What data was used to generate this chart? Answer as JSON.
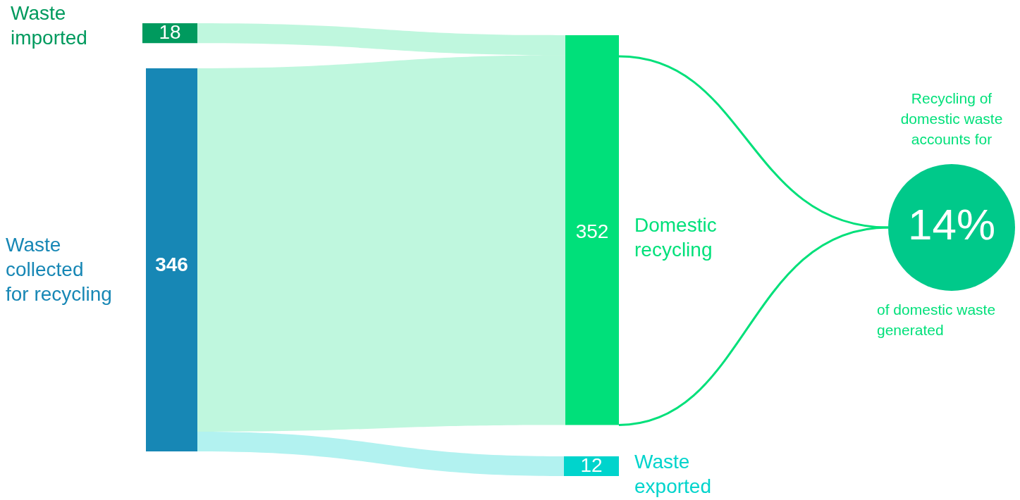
{
  "chart_data": {
    "type": "other",
    "categories": [
      "Waste\nimported",
      "Waste\ncollected\nfor recycling",
      "Domestic\nrecycling",
      "Waste\nexported"
    ],
    "values": [
      18,
      346,
      352,
      12
    ],
    "data_labels": true,
    "colors": [
      "#009a5e",
      "#1787b5",
      "#00e07a",
      "#00d4cc"
    ],
    "annotations": [
      "Recycling of\ndomestic waste\naccounts for",
      "14%",
      "of domestic waste\ngenerated"
    ]
  }
}
